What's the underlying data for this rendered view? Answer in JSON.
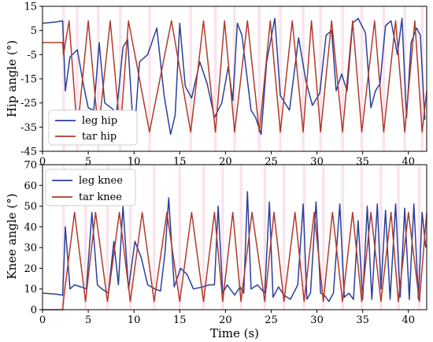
{
  "chart_data": [
    {
      "type": "line",
      "ylabel": "Hip angle (°)",
      "xlabel": "",
      "xlim": [
        0,
        42
      ],
      "ylim": [
        -45,
        15
      ],
      "xticks": [
        "0",
        "5",
        "10",
        "15",
        "20",
        "25",
        "30",
        "35",
        "40"
      ],
      "yticks": [
        "15",
        "5",
        "-5",
        "-15",
        "-25",
        "-35",
        "-45"
      ],
      "legend_position": "lower-left",
      "series": [
        {
          "name": "leg hip",
          "color": "#2a3f9c",
          "x": [
            0.0,
            1.5,
            2.2,
            2.5,
            3.0,
            3.8,
            4.5,
            5.0,
            5.6,
            6.2,
            6.8,
            7.5,
            8.1,
            8.8,
            9.3,
            10.0,
            10.6,
            11.5,
            12.5,
            13.3,
            14.0,
            14.5,
            15.0,
            15.6,
            16.3,
            17.2,
            18.0,
            18.8,
            19.6,
            20.3,
            20.8,
            21.3,
            21.8,
            22.8,
            23.3,
            23.9,
            24.5,
            25.4,
            26.0,
            27.0,
            28.0,
            28.8,
            29.5,
            30.3,
            31.0,
            31.6,
            32.1,
            32.7,
            33.3,
            33.9,
            34.5,
            35.3,
            35.9,
            36.4,
            36.9,
            37.5,
            38.1,
            38.8,
            39.3,
            39.8,
            40.3,
            40.9,
            41.3,
            41.8
          ],
          "y": [
            8,
            8.5,
            9,
            -20,
            -6,
            -3,
            -18,
            -27,
            -28,
            0,
            -25,
            -27,
            -29,
            -2,
            1.3,
            -40,
            -8,
            -5,
            6,
            -22,
            -38,
            -30,
            8,
            -18,
            -23,
            -8,
            -17,
            -31,
            -25,
            -10,
            -24,
            8,
            3,
            -28,
            -31,
            -38,
            -8,
            10,
            -22,
            -28,
            2,
            -16,
            -26,
            -21,
            3,
            5,
            -20,
            -13,
            -20,
            8,
            10,
            4,
            -27,
            -20,
            -17,
            7,
            9,
            -5,
            10,
            -31,
            0,
            6,
            3,
            -32
          ]
        },
        {
          "name": "tar hip",
          "color": "#b23a2a",
          "x": [
            0.0,
            2.2,
            2.3,
            2.9,
            3.8,
            5.0,
            6.1,
            7.4,
            8.5,
            9.4,
            11.7,
            14.1,
            16.2,
            17.6,
            18.9,
            19.9,
            21.0,
            22.4,
            23.7,
            24.9,
            26.0,
            27.3,
            28.5,
            29.4,
            30.4,
            31.6,
            32.8,
            33.9,
            34.9,
            36.3,
            37.3,
            38.6,
            39.6,
            40.7,
            41.5,
            42.0
          ],
          "y": [
            0,
            0,
            -5,
            9,
            -37,
            9,
            -37,
            9,
            -37,
            9,
            -37,
            9,
            -37,
            9,
            -37,
            9,
            -37,
            9,
            -37,
            9,
            -37,
            9,
            -37,
            9,
            -37,
            9,
            -37,
            9,
            -37,
            9,
            -37,
            9,
            -37,
            9,
            -37,
            -20
          ]
        }
      ]
    },
    {
      "type": "line",
      "ylabel": "Knee angle (°)",
      "xlabel": "Time (s)",
      "xlim": [
        0,
        42
      ],
      "ylim": [
        0,
        70
      ],
      "xticks": [
        "0",
        "5",
        "10",
        "15",
        "20",
        "25",
        "30",
        "35",
        "40"
      ],
      "yticks": [
        "0",
        "10",
        "20",
        "30",
        "40",
        "50",
        "60",
        "70"
      ],
      "legend_position": "upper-left",
      "series": [
        {
          "name": "leg knee",
          "color": "#2a3f9c",
          "x": [
            0.0,
            1.5,
            2.2,
            2.5,
            3.0,
            3.5,
            4.2,
            4.8,
            5.4,
            6.0,
            6.5,
            7.2,
            7.8,
            8.3,
            8.8,
            9.4,
            10.1,
            10.8,
            11.5,
            12.3,
            12.9,
            13.4,
            13.8,
            14.4,
            15.1,
            15.8,
            16.5,
            17.5,
            18.2,
            18.8,
            19.2,
            19.7,
            20.2,
            21.0,
            21.6,
            22.0,
            22.4,
            22.8,
            23.5,
            24.3,
            24.8,
            25.2,
            25.8,
            26.4,
            27.1,
            27.9,
            28.5,
            28.9,
            29.3,
            29.9,
            30.4,
            30.8,
            31.3,
            31.8,
            32.5,
            33.0,
            33.5,
            34.0,
            34.5,
            35.0,
            35.5,
            36.0,
            36.6,
            37.0,
            37.5,
            38.0,
            38.6,
            39.1,
            39.6,
            40.1,
            40.6,
            41.1,
            41.5,
            41.9
          ],
          "y": [
            8,
            7.5,
            7,
            40,
            10,
            12,
            11,
            10,
            47,
            12,
            10,
            8,
            33,
            12,
            50,
            10,
            33,
            25,
            12,
            10,
            9,
            28,
            54,
            11,
            20,
            17,
            10,
            11,
            12,
            12,
            50,
            8,
            12,
            7,
            11,
            8,
            57,
            10,
            12,
            8,
            52,
            6,
            11,
            7,
            5,
            12,
            51,
            5,
            8,
            52,
            8,
            7,
            4,
            8,
            51,
            6,
            8,
            5,
            43,
            5,
            50,
            5,
            51,
            10,
            48,
            5,
            51,
            6,
            49,
            5,
            51,
            5,
            47,
            30
          ]
        },
        {
          "name": "tar knee",
          "color": "#b23a2a",
          "x": [
            0.0,
            2.2,
            2.3,
            3.5,
            4.7,
            5.8,
            7.1,
            8.4,
            9.6,
            10.9,
            12.2,
            13.6,
            15.0,
            16.3,
            17.6,
            18.8,
            19.7,
            20.8,
            21.7,
            22.9,
            24.3,
            25.3,
            26.4,
            27.6,
            28.6,
            29.7,
            30.7,
            31.7,
            32.8,
            33.9,
            34.9,
            35.9,
            37.0,
            38.1,
            38.9,
            40.0,
            41.2,
            42.0
          ],
          "y": [
            0,
            0,
            5,
            47,
            4,
            47,
            4,
            47,
            4,
            47,
            4,
            47,
            4,
            47,
            4,
            47,
            4,
            47,
            4,
            47,
            4,
            47,
            4,
            47,
            4,
            47,
            4,
            47,
            4,
            47,
            4,
            47,
            4,
            47,
            4,
            47,
            4,
            47
          ]
        }
      ]
    }
  ]
}
